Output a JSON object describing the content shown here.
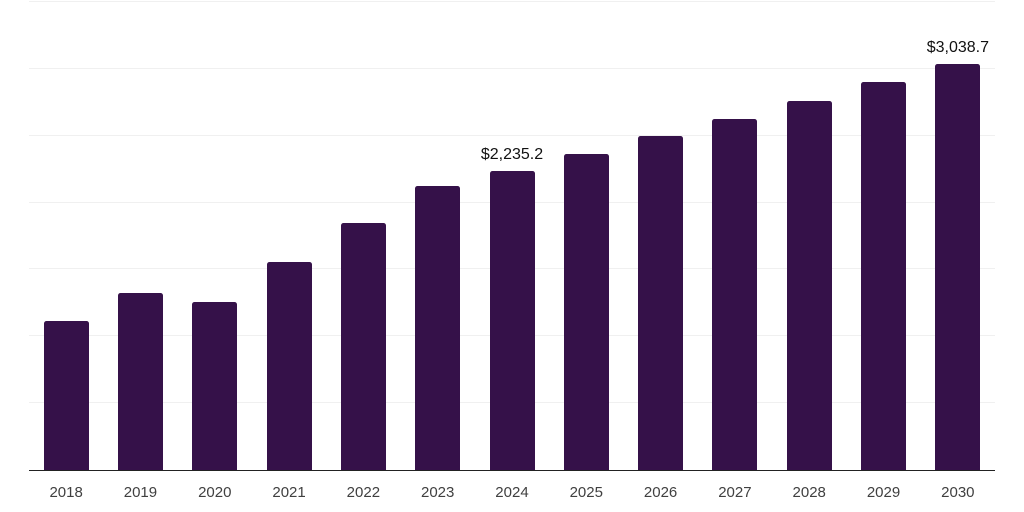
{
  "chart_data": {
    "type": "bar",
    "title": "",
    "xlabel": "",
    "ylabel": "",
    "categories": [
      "2018",
      "2019",
      "2020",
      "2021",
      "2022",
      "2023",
      "2024",
      "2025",
      "2026",
      "2027",
      "2028",
      "2029",
      "2030"
    ],
    "values": [
      1114,
      1324,
      1256,
      1552,
      1845,
      2124,
      2235.2,
      2364,
      2496,
      2622,
      2762,
      2903,
      3038.7
    ],
    "data_labels": [
      {
        "category": "2024",
        "text": "$2,235.2"
      },
      {
        "category": "2030",
        "text": "$3,038.7"
      }
    ],
    "ylim": [
      0,
      3500
    ],
    "grid_step": 500,
    "grid": "horizontal-only",
    "y_tick_labels_visible": false,
    "legend": "none",
    "colors": {
      "bar": "#351149",
      "gridline": "#f0f0f0",
      "axis_line": "#222222",
      "tick_label": "#404040",
      "data_label": "#111111",
      "background": "#ffffff"
    }
  }
}
